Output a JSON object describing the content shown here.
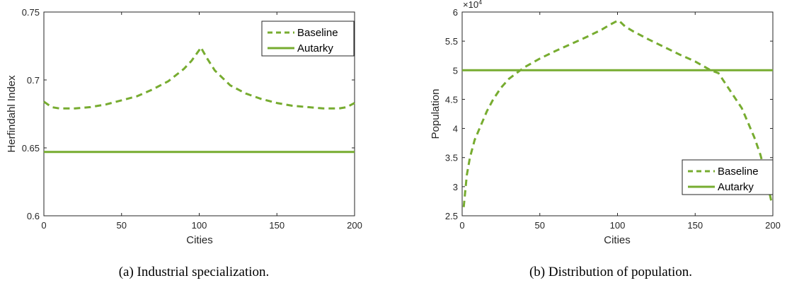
{
  "chart_data": [
    {
      "type": "line",
      "caption": "(a) Industrial specialization.",
      "xlabel": "Cities",
      "ylabel": "Herfindahl Index",
      "xlim": [
        0,
        200
      ],
      "ylim": [
        0.6,
        0.75
      ],
      "xticks": [
        0,
        50,
        100,
        150,
        200
      ],
      "yticks": [
        0.6,
        0.65,
        0.7,
        0.75
      ],
      "xtick_labels": [
        "0",
        "50",
        "100",
        "150",
        "200"
      ],
      "ytick_labels": [
        "0.6",
        "0.65",
        "0.7",
        "0.75"
      ],
      "legend_position": "top-right",
      "series": [
        {
          "name": "Baseline",
          "style": "dashed",
          "x": [
            0,
            5,
            10,
            15,
            20,
            30,
            40,
            50,
            60,
            70,
            80,
            90,
            95,
            100,
            101,
            105,
            110,
            120,
            130,
            140,
            150,
            160,
            170,
            180,
            185,
            190,
            195,
            200
          ],
          "values": [
            0.684,
            0.68,
            0.679,
            0.679,
            0.679,
            0.68,
            0.682,
            0.685,
            0.688,
            0.693,
            0.699,
            0.708,
            0.714,
            0.722,
            0.724,
            0.716,
            0.707,
            0.696,
            0.69,
            0.686,
            0.683,
            0.681,
            0.68,
            0.679,
            0.679,
            0.679,
            0.68,
            0.683
          ]
        },
        {
          "name": "Autarky",
          "style": "solid",
          "x": [
            0,
            200
          ],
          "values": [
            0.647,
            0.647
          ]
        }
      ]
    },
    {
      "type": "line",
      "caption": "(b) Distribution of population.",
      "xlabel": "Cities",
      "ylabel": "Population",
      "exponent_label": "×10",
      "exponent_power": "4",
      "xlim": [
        0,
        200
      ],
      "ylim": [
        2.5,
        6
      ],
      "xticks": [
        0,
        50,
        100,
        150,
        200
      ],
      "yticks": [
        2.5,
        3,
        3.5,
        4,
        4.5,
        5,
        5.5,
        6
      ],
      "xtick_labels": [
        "0",
        "50",
        "100",
        "150",
        "200"
      ],
      "ytick_labels": [
        "2.5",
        "3",
        "3.5",
        "4",
        "4.5",
        "5",
        "5.5",
        "6"
      ],
      "legend_position": "lower-right",
      "series": [
        {
          "name": "Baseline",
          "style": "dashed",
          "x": [
            1,
            3,
            5,
            8,
            12,
            16,
            20,
            25,
            30,
            35,
            40,
            50,
            60,
            70,
            80,
            90,
            95,
            100,
            101,
            105,
            110,
            120,
            130,
            140,
            150,
            160,
            165,
            170,
            175,
            180,
            184,
            188,
            192,
            195,
            197,
            199,
            200
          ],
          "values": [
            2.65,
            3.2,
            3.5,
            3.8,
            4.05,
            4.3,
            4.5,
            4.7,
            4.85,
            4.95,
            5.05,
            5.2,
            5.33,
            5.45,
            5.57,
            5.7,
            5.78,
            5.85,
            5.85,
            5.75,
            5.67,
            5.53,
            5.4,
            5.27,
            5.15,
            5.0,
            4.95,
            4.75,
            4.55,
            4.35,
            4.1,
            3.85,
            3.55,
            3.25,
            3.0,
            2.75,
            2.7
          ]
        },
        {
          "name": "Autarky",
          "style": "solid",
          "x": [
            0,
            200
          ],
          "values": [
            5.0,
            5.0
          ]
        }
      ]
    }
  ],
  "colors": {
    "series": "#77ac30",
    "axis": "#262626"
  }
}
